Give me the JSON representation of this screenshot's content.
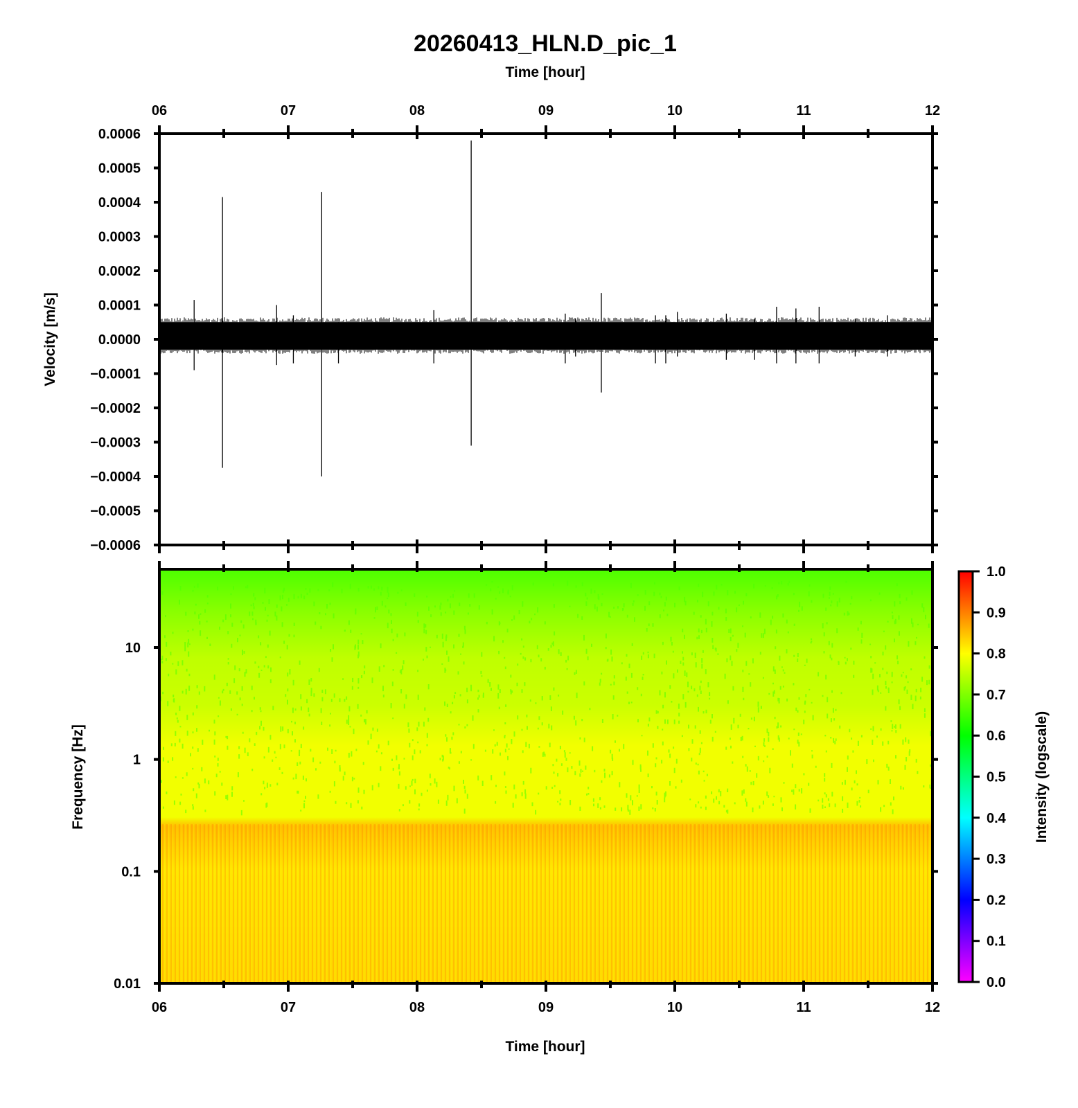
{
  "chart_data": [
    {
      "type": "line",
      "title": "20260413_HLN.D_pic_1",
      "xlabel": "Time [hour]",
      "ylabel": "Velocity [m/s]",
      "xlim": [
        6,
        12
      ],
      "ylim": [
        -0.0006,
        0.0006
      ],
      "x_tick_labels": [
        "06",
        "07",
        "08",
        "09",
        "10",
        "11",
        "12"
      ],
      "y_tick_labels": [
        "0.0006",
        "0.0005",
        "0.0004",
        "0.0003",
        "0.0002",
        "0.0001",
        "0.0000",
        "−0.0001",
        "−0.0002",
        "−0.0003",
        "−0.0004",
        "−0.0005",
        "−0.0006"
      ],
      "y_ticks": [
        0.0006,
        0.0005,
        0.0004,
        0.0003,
        0.0002,
        0.0001,
        0,
        -0.0001,
        -0.0002,
        -0.0003,
        -0.0004,
        -0.0005,
        -0.0006
      ],
      "noise_band": [
        -3e-05,
        5e-05
      ],
      "spikes": [
        {
          "x": 6.27,
          "ymax": 0.000115,
          "ymin": -9e-05
        },
        {
          "x": 6.49,
          "ymax": 0.000415,
          "ymin": -0.000375
        },
        {
          "x": 6.91,
          "ymax": 0.0001,
          "ymin": -7.5e-05
        },
        {
          "x": 7.04,
          "ymax": 7e-05,
          "ymin": -7e-05
        },
        {
          "x": 7.26,
          "ymax": 0.00043,
          "ymin": -0.0004
        },
        {
          "x": 7.39,
          "ymax": 5e-05,
          "ymin": -7e-05
        },
        {
          "x": 8.13,
          "ymax": 8.5e-05,
          "ymin": -7e-05
        },
        {
          "x": 8.42,
          "ymax": 0.00058,
          "ymin": -0.00031
        },
        {
          "x": 9.15,
          "ymax": 7.5e-05,
          "ymin": -7e-05
        },
        {
          "x": 9.23,
          "ymax": 6e-05,
          "ymin": -5e-05
        },
        {
          "x": 9.43,
          "ymax": 0.000135,
          "ymin": -0.000155
        },
        {
          "x": 9.85,
          "ymax": 7e-05,
          "ymin": -7e-05
        },
        {
          "x": 9.93,
          "ymax": 7e-05,
          "ymin": -7e-05
        },
        {
          "x": 10.02,
          "ymax": 8e-05,
          "ymin": -5e-05
        },
        {
          "x": 10.4,
          "ymax": 7.5e-05,
          "ymin": -6e-05
        },
        {
          "x": 10.62,
          "ymax": 6e-05,
          "ymin": -6e-05
        },
        {
          "x": 10.79,
          "ymax": 9.5e-05,
          "ymin": -7e-05
        },
        {
          "x": 10.94,
          "ymax": 9e-05,
          "ymin": -7e-05
        },
        {
          "x": 11.12,
          "ymax": 9.5e-05,
          "ymin": -7e-05
        },
        {
          "x": 11.4,
          "ymax": 6e-05,
          "ymin": -5e-05
        },
        {
          "x": 11.65,
          "ymax": 7e-05,
          "ymin": -5e-05
        }
      ],
      "top_xlabel": "Time [hour]"
    },
    {
      "type": "heatmap",
      "xlabel": "Time [hour]",
      "ylabel": "Frequency [Hz]",
      "xlim": [
        6,
        12
      ],
      "ylim": [
        0.01,
        50
      ],
      "yscale": "log",
      "x_tick_labels": [
        "06",
        "07",
        "08",
        "09",
        "10",
        "11",
        "12"
      ],
      "y_ticks": [
        10,
        1,
        0.1,
        0.01
      ],
      "y_tick_labels": [
        "10",
        "1",
        "0.1",
        "0.01"
      ],
      "intensity_profile": [
        {
          "freq": 50,
          "value": 0.66
        },
        {
          "freq": 20,
          "value": 0.71
        },
        {
          "freq": 8,
          "value": 0.75
        },
        {
          "freq": 3,
          "value": 0.76
        },
        {
          "freq": 1.3,
          "value": 0.79
        },
        {
          "freq": 0.5,
          "value": 0.79
        },
        {
          "freq": 0.3,
          "value": 0.79
        },
        {
          "freq": 0.25,
          "value": 0.85
        },
        {
          "freq": 0.1,
          "value": 0.82
        },
        {
          "freq": 0.01,
          "value": 0.83
        }
      ],
      "colorbar": {
        "label": "Intensity (logscale)",
        "range": [
          0,
          1
        ],
        "tick_labels": [
          "1.0",
          "0.9",
          "0.8",
          "0.7",
          "0.6",
          "0.5",
          "0.4",
          "0.3",
          "0.2",
          "0.1",
          "0.0"
        ],
        "ticks": [
          1.0,
          0.9,
          0.8,
          0.7,
          0.6,
          0.5,
          0.4,
          0.3,
          0.2,
          0.1,
          0.0
        ],
        "colormap": [
          "#ff00ff",
          "#0000ff",
          "#00ffff",
          "#00ff00",
          "#ffff00",
          "#ff0000"
        ]
      }
    }
  ]
}
